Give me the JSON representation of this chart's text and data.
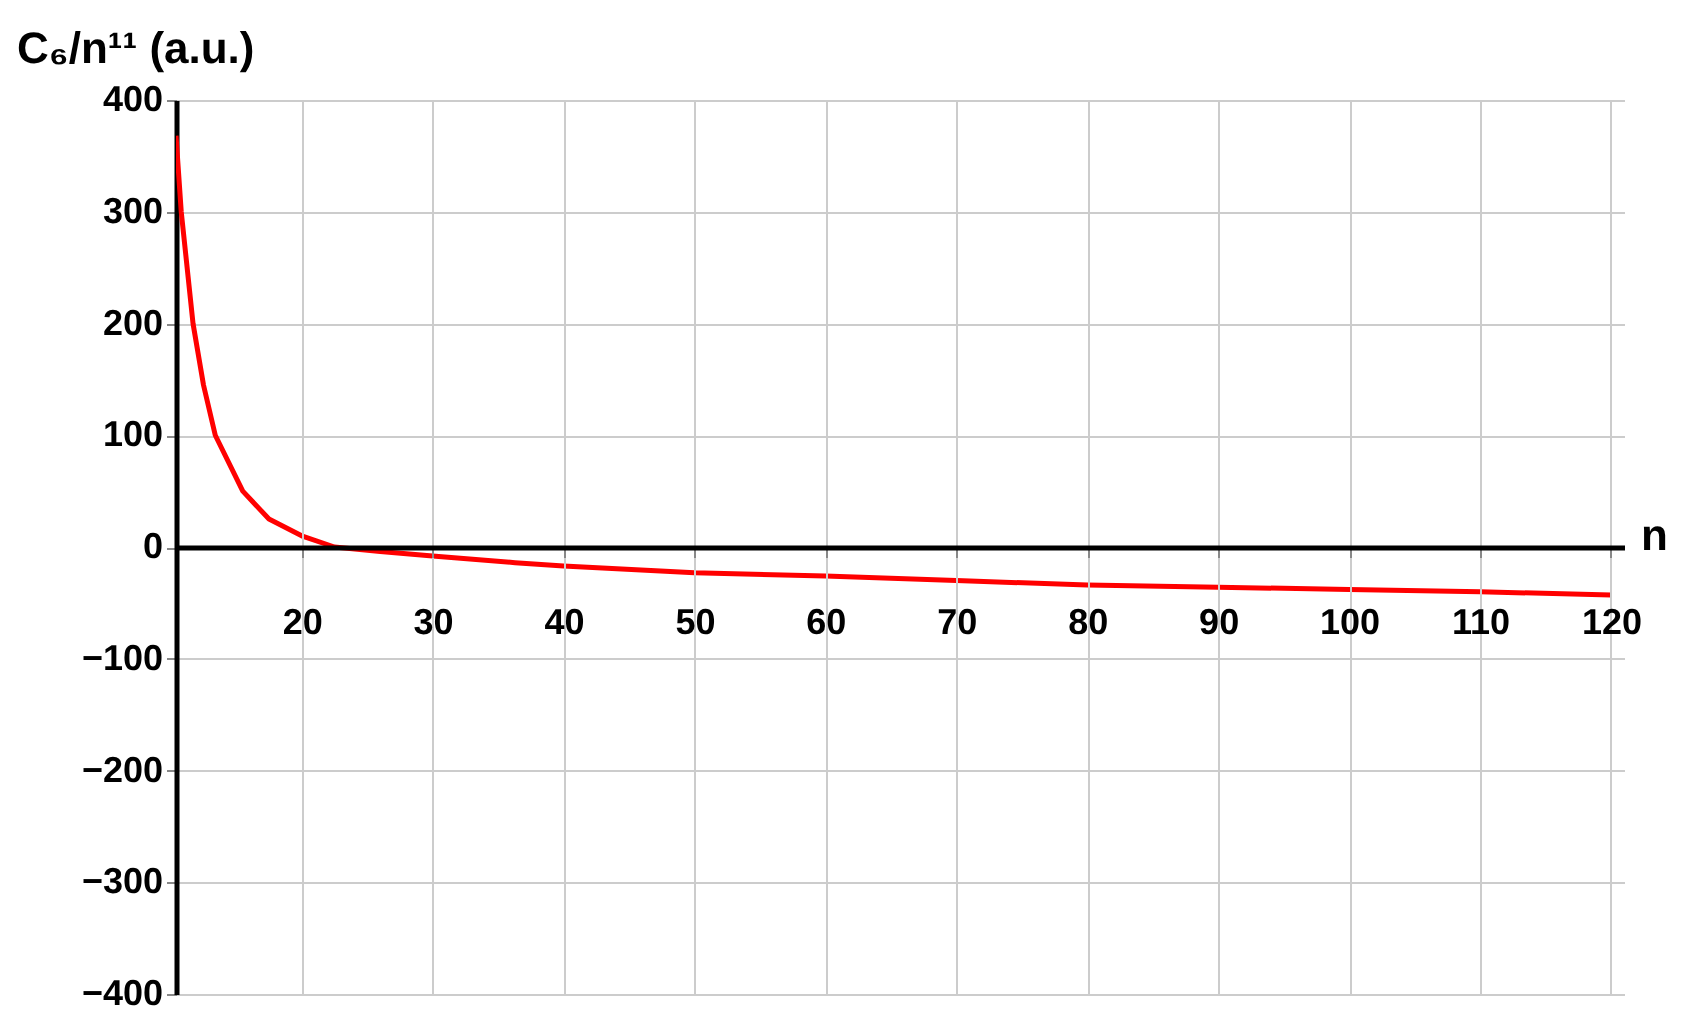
{
  "chart_data": {
    "type": "line",
    "xlabel": "n",
    "ylabel": "C₆/n¹¹ (a.u.)",
    "x": [
      10.4,
      10.8,
      11.7,
      12.5,
      13.4,
      15.5,
      17.5,
      20,
      22.5,
      26,
      30,
      36.3,
      40,
      50,
      60,
      70,
      80,
      90,
      100,
      110,
      120
    ],
    "series": [
      {
        "color": "#ff0000",
        "values": [
          368,
          300,
          200,
          145,
          100,
          50,
          25,
          10,
          0,
          -4,
          -8,
          -14,
          -17,
          -23,
          -26,
          -30,
          -34,
          -36,
          -38,
          -40,
          -43
        ]
      }
    ],
    "xlim": [
      10.4,
      121
    ],
    "ylim": [
      -400,
      400
    ],
    "xticks": [
      20,
      30,
      40,
      50,
      60,
      70,
      80,
      90,
      100,
      110,
      120
    ],
    "yticks": [
      -400,
      -300,
      -200,
      -100,
      0,
      100,
      200,
      300,
      400
    ],
    "grid": true,
    "marker": "none",
    "line_style": "solid"
  }
}
